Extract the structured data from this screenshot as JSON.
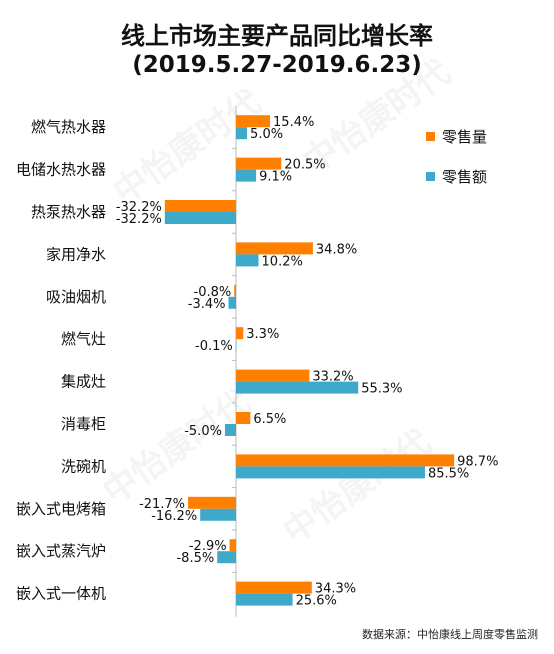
{
  "watermark": "中怡康时代",
  "source": "数据来源：中怡康线上周度零售监测",
  "colors": {
    "volume": "#FF7F00",
    "amount": "#3FA9C9",
    "axis": "#BBBBBB"
  },
  "chart_data": {
    "type": "bar",
    "orientation": "horizontal",
    "title": "线上市场主要产品同比增长率",
    "subtitle": "(2019.5.27-2019.6.23)",
    "categories": [
      "燃气热水器",
      "电储水热水器",
      "热泵热水器",
      "家用净水",
      "吸油烟机",
      "燃气灶",
      "集成灶",
      "消毒柜",
      "洗碗机",
      "嵌入式电烤箱",
      "嵌入式蒸汽炉",
      "嵌入式一体机"
    ],
    "series": [
      {
        "name": "零售量",
        "values": [
          15.4,
          20.5,
          -32.2,
          34.8,
          -0.8,
          3.3,
          33.2,
          6.5,
          98.7,
          -21.7,
          -2.9,
          34.3
        ],
        "labels": [
          "15.4%",
          "20.5%",
          "-32.2%",
          "34.8%",
          "-0.8%",
          "3.3%",
          "33.2%",
          "6.5%",
          "98.7%",
          "-21.7%",
          "-2.9%",
          "34.3%"
        ]
      },
      {
        "name": "零售额",
        "values": [
          5.0,
          9.1,
          -32.2,
          10.2,
          -3.4,
          -0.1,
          55.3,
          -5.0,
          85.5,
          -16.2,
          -8.5,
          25.6
        ],
        "labels": [
          "5.0%",
          "9.1%",
          "-32.2%",
          "10.2%",
          "-3.4%",
          "-0.1%",
          "55.3%",
          "-5.0%",
          "85.5%",
          "-16.2%",
          "-8.5%",
          "25.6%"
        ]
      }
    ],
    "xlim": [
      -40,
      100
    ],
    "legend_position": "right",
    "grid": false
  }
}
